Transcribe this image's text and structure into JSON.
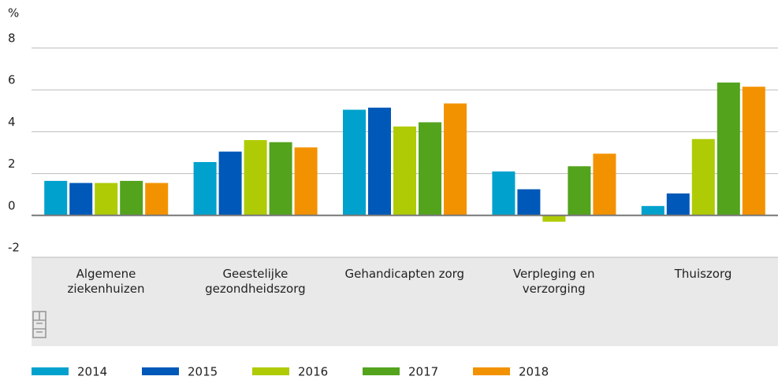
{
  "chart_data": {
    "type": "bar",
    "y_label": "%",
    "categories": [
      "Algemene\nziekenhuizen",
      "Geestelijke\ngezondheidszorg",
      "Gehandicapten zorg",
      "Verpleging en\nverzorging",
      "Thuiszorg"
    ],
    "series": [
      {
        "name": "2014",
        "color": "#00a1cd",
        "values": [
          1.65,
          2.55,
          5.05,
          2.1,
          0.45
        ]
      },
      {
        "name": "2015",
        "color": "#0058b8",
        "values": [
          1.55,
          3.05,
          5.15,
          1.25,
          1.05
        ]
      },
      {
        "name": "2016",
        "color": "#afcb05",
        "values": [
          1.55,
          3.6,
          4.25,
          -0.3,
          3.65
        ]
      },
      {
        "name": "2017",
        "color": "#53a31d",
        "values": [
          1.65,
          3.5,
          4.45,
          2.35,
          6.35
        ]
      },
      {
        "name": "2018",
        "color": "#f39200",
        "values": [
          1.55,
          3.25,
          5.35,
          2.95,
          6.15
        ]
      }
    ],
    "ylim": [
      -2,
      8
    ],
    "yticks": [
      -2,
      0,
      2,
      4,
      6,
      8
    ],
    "grid": true,
    "legend": "bottom"
  }
}
